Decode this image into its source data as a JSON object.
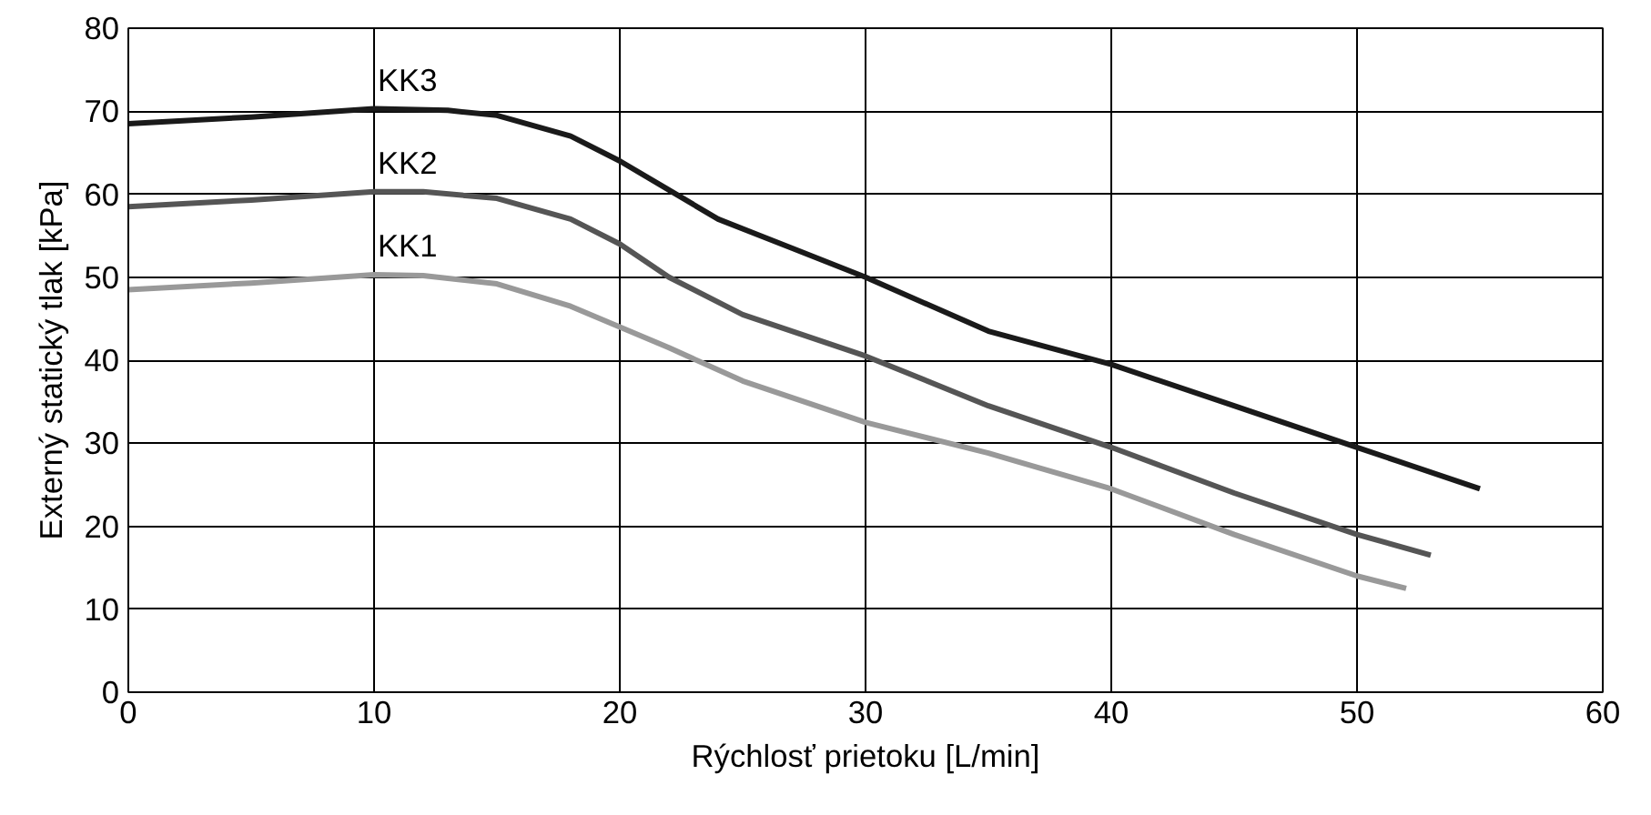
{
  "chart_data": {
    "type": "line",
    "xlabel": "Rýchlosť prietoku [L/min]",
    "ylabel": "Externý statický tlak [kPa]",
    "xlim": [
      0,
      60
    ],
    "xticks": [
      0,
      10,
      20,
      30,
      40,
      50,
      60
    ],
    "ylim": [
      0,
      80
    ],
    "yticks": [
      0,
      10,
      20,
      30,
      40,
      50,
      60,
      70,
      80
    ],
    "grid": true,
    "marker": "none",
    "line_style": "solid",
    "series": [
      {
        "name": "KK3",
        "color": "#1a1a1a",
        "x": [
          0,
          5,
          10,
          13,
          15,
          18,
          20,
          22,
          24,
          27,
          30,
          35,
          40,
          45,
          50,
          55
        ],
        "values": [
          68.5,
          69.3,
          70.3,
          70.1,
          69.5,
          67,
          64,
          60.5,
          57,
          53.5,
          50,
          43.5,
          39.5,
          34.5,
          29.5,
          24.5
        ]
      },
      {
        "name": "KK2",
        "color": "#555555",
        "x": [
          0,
          5,
          10,
          12,
          15,
          18,
          20,
          22,
          25,
          30,
          35,
          40,
          45,
          50,
          53
        ],
        "values": [
          58.5,
          59.3,
          60.3,
          60.3,
          59.5,
          57,
          54,
          50,
          45.5,
          40.5,
          34.5,
          29.5,
          24,
          19,
          16.5
        ]
      },
      {
        "name": "KK1",
        "color": "#999999",
        "x": [
          0,
          5,
          10,
          12,
          15,
          18,
          20,
          22,
          25,
          30,
          35,
          40,
          45,
          50,
          52
        ],
        "values": [
          48.5,
          49.3,
          50.3,
          50.2,
          49.2,
          46.5,
          44,
          41.5,
          37.5,
          32.5,
          28.8,
          24.5,
          19,
          14,
          12.5
        ]
      }
    ]
  }
}
